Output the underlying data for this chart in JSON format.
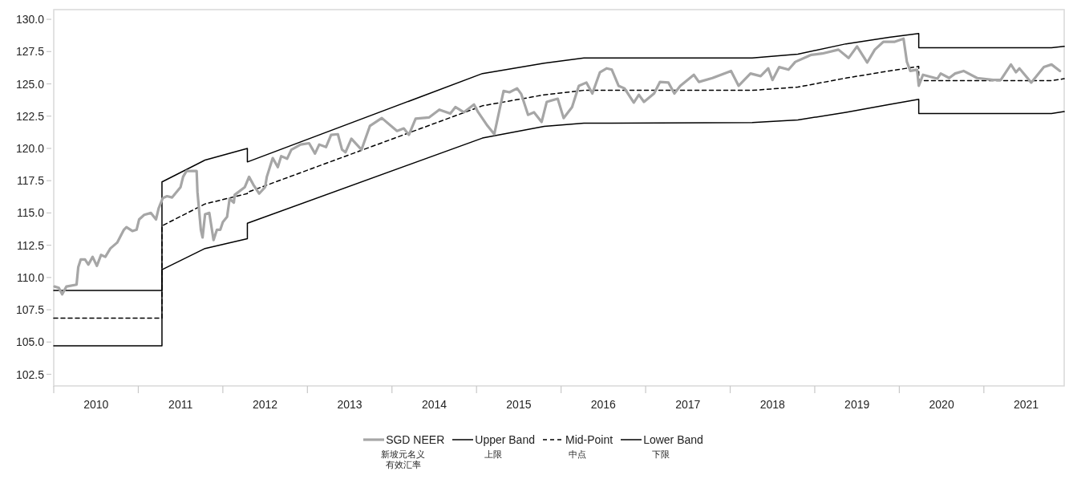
{
  "chart_data": {
    "type": "line",
    "xlim": [
      2010,
      2021.95
    ],
    "ylim": [
      101.6,
      130.75
    ],
    "xticks": [
      {
        "value": 2010,
        "label": null
      },
      {
        "value": 2010.5,
        "label": "2010"
      },
      {
        "value": 2011,
        "label": null
      },
      {
        "value": 2011.5,
        "label": "2011"
      },
      {
        "value": 2012,
        "label": null
      },
      {
        "value": 2012.5,
        "label": "2012"
      },
      {
        "value": 2013,
        "label": null
      },
      {
        "value": 2013.5,
        "label": "2013"
      },
      {
        "value": 2014,
        "label": null
      },
      {
        "value": 2014.5,
        "label": "2014"
      },
      {
        "value": 2015,
        "label": null
      },
      {
        "value": 2015.5,
        "label": "2015"
      },
      {
        "value": 2016,
        "label": null
      },
      {
        "value": 2016.5,
        "label": "2016"
      },
      {
        "value": 2017,
        "label": null
      },
      {
        "value": 2017.5,
        "label": "2017"
      },
      {
        "value": 2018,
        "label": null
      },
      {
        "value": 2018.5,
        "label": "2018"
      },
      {
        "value": 2019,
        "label": null
      },
      {
        "value": 2019.5,
        "label": "2019"
      },
      {
        "value": 2020,
        "label": null
      },
      {
        "value": 2020.5,
        "label": "2020"
      },
      {
        "value": 2021,
        "label": null
      },
      {
        "value": 2021.5,
        "label": "2021"
      }
    ],
    "yticks": [
      {
        "value": 102.5,
        "label": "102.5"
      },
      {
        "value": 105,
        "label": "105.0"
      },
      {
        "value": 107.5,
        "label": "107.5"
      },
      {
        "value": 110,
        "label": "110.0"
      },
      {
        "value": 112.5,
        "label": "112.5"
      },
      {
        "value": 115,
        "label": "115.0"
      },
      {
        "value": 117.5,
        "label": "117.5"
      },
      {
        "value": 120,
        "label": "120.0"
      },
      {
        "value": 122.5,
        "label": "122.5"
      },
      {
        "value": 125,
        "label": "125.0"
      },
      {
        "value": 127.5,
        "label": "127.5"
      },
      {
        "value": 130,
        "label": "130.0"
      }
    ],
    "grid": false,
    "legend": "bottom",
    "series": [
      {
        "name": "SGD NEER",
        "color": "#a6a6a6",
        "line_style": "solid",
        "x": [
          2010.01,
          2010.06,
          2010.1,
          2010.15,
          2010.27,
          2010.29,
          2010.32,
          2010.37,
          2010.41,
          2010.46,
          2010.51,
          2010.56,
          2010.61,
          2010.67,
          2010.75,
          2010.83,
          2010.86,
          2010.93,
          2010.98,
          2011.01,
          2011.07,
          2011.15,
          2011.21,
          2011.24,
          2011.29,
          2011.34,
          2011.4,
          2011.5,
          2011.53,
          2011.57,
          2011.69,
          2011.7,
          2011.74,
          2011.76,
          2011.79,
          2011.84,
          2011.89,
          2011.93,
          2011.97,
          2012.0,
          2012.05,
          2012.08,
          2012.13,
          2012.14,
          2012.26,
          2012.31,
          2012.36,
          2012.43,
          2012.5,
          2012.52,
          2012.59,
          2012.65,
          2012.69,
          2012.76,
          2012.81,
          2012.92,
          2013.02,
          2013.09,
          2013.14,
          2013.22,
          2013.28,
          2013.36,
          2013.41,
          2013.45,
          2013.52,
          2013.64,
          2013.74,
          2013.88,
          2014.06,
          2014.14,
          2014.2,
          2014.28,
          2014.44,
          2014.56,
          2014.69,
          2014.75,
          2014.85,
          2014.97,
          2015.02,
          2015.13,
          2015.21,
          2015.32,
          2015.39,
          2015.48,
          2015.53,
          2015.61,
          2015.68,
          2015.77,
          2015.83,
          2015.96,
          2016.03,
          2016.13,
          2016.21,
          2016.3,
          2016.37,
          2016.46,
          2016.54,
          2016.6,
          2016.68,
          2016.75,
          2016.86,
          2016.92,
          2016.98,
          2017.1,
          2017.17,
          2017.27,
          2017.34,
          2017.41,
          2017.57,
          2017.63,
          2017.79,
          2018.01,
          2018.1,
          2018.24,
          2018.36,
          2018.45,
          2018.5,
          2018.58,
          2018.69,
          2018.77,
          2018.96,
          2019.09,
          2019.28,
          2019.4,
          2019.5,
          2019.62,
          2019.71,
          2019.81,
          2019.94,
          2020.05,
          2020.09,
          2020.13,
          2020.21,
          2020.23,
          2020.28,
          2020.45,
          2020.49,
          2020.59,
          2020.66,
          2020.76,
          2020.92,
          2021.11,
          2021.2,
          2021.32,
          2021.38,
          2021.42,
          2021.56,
          2021.71,
          2021.8,
          2021.9
        ],
        "values": [
          109.3,
          109.2,
          108.7,
          109.3,
          109.45,
          110.8,
          111.4,
          111.4,
          111.0,
          111.6,
          110.9,
          111.75,
          111.6,
          112.25,
          112.7,
          113.7,
          113.9,
          113.6,
          113.7,
          114.5,
          114.85,
          115.0,
          114.5,
          115.35,
          116.15,
          116.3,
          116.2,
          117.0,
          117.8,
          118.25,
          118.25,
          116.6,
          113.7,
          113.1,
          114.9,
          115.0,
          112.9,
          113.7,
          113.7,
          114.3,
          114.7,
          116.1,
          115.8,
          116.4,
          117.0,
          117.8,
          117.2,
          116.5,
          117.0,
          117.8,
          119.25,
          118.55,
          119.4,
          119.2,
          119.9,
          120.3,
          120.4,
          119.6,
          120.3,
          120.1,
          121.05,
          121.1,
          119.9,
          119.7,
          120.75,
          119.9,
          121.75,
          122.35,
          121.35,
          121.55,
          121.05,
          122.3,
          122.4,
          123.0,
          122.7,
          123.2,
          122.8,
          123.4,
          122.8,
          121.75,
          121.1,
          124.45,
          124.35,
          124.65,
          124.2,
          122.6,
          122.8,
          122.05,
          123.6,
          123.85,
          122.35,
          123.2,
          124.85,
          125.1,
          124.25,
          125.9,
          126.2,
          126.1,
          124.85,
          124.65,
          123.55,
          124.15,
          123.6,
          124.25,
          125.15,
          125.1,
          124.25,
          124.85,
          125.7,
          125.15,
          125.45,
          126.0,
          124.85,
          125.8,
          125.6,
          126.2,
          125.3,
          126.3,
          126.1,
          126.7,
          127.25,
          127.35,
          127.65,
          127.0,
          127.9,
          126.65,
          127.65,
          128.25,
          128.25,
          128.5,
          126.7,
          126.0,
          126.1,
          124.85,
          125.7,
          125.4,
          125.8,
          125.45,
          125.8,
          126.0,
          125.45,
          125.3,
          125.3,
          126.5,
          125.9,
          126.2,
          125.1,
          126.3,
          126.5,
          126.0
        ]
      },
      {
        "name": "Upper Band",
        "color": "#000000",
        "line_style": "solid",
        "x": [
          2010.0,
          2011.28,
          2011.28,
          2011.79,
          2012.29,
          2012.29,
          2015.07,
          2015.8,
          2016.27,
          2018.26,
          2018.8,
          2019.37,
          2019.88,
          2020.23,
          2020.23,
          2021.8,
          2021.95
        ],
        "values": [
          109.0,
          109.0,
          117.4,
          119.1,
          120.0,
          118.95,
          125.8,
          126.6,
          127.0,
          127.0,
          127.3,
          128.1,
          128.6,
          128.9,
          127.8,
          127.8,
          127.9
        ]
      },
      {
        "name": "Mid-Point",
        "color": "#000000",
        "line_style": "dashed",
        "x": [
          2010.0,
          2011.28,
          2011.28,
          2011.79,
          2012.29,
          2012.29,
          2015.07,
          2015.8,
          2016.27,
          2018.26,
          2018.8,
          2019.37,
          2019.88,
          2020.23,
          2020.23,
          2021.8,
          2021.95
        ],
        "values": [
          106.85,
          106.85,
          114.0,
          115.7,
          116.5,
          116.6,
          123.3,
          124.15,
          124.5,
          124.5,
          124.75,
          125.45,
          126.0,
          126.35,
          125.25,
          125.25,
          125.4
        ]
      },
      {
        "name": "Lower Band",
        "color": "#000000",
        "line_style": "solid",
        "x": [
          2010.0,
          2011.28,
          2011.28,
          2011.79,
          2012.29,
          2012.29,
          2015.07,
          2015.8,
          2016.27,
          2018.26,
          2018.8,
          2019.37,
          2019.88,
          2020.23,
          2020.23,
          2021.8,
          2021.95
        ],
        "values": [
          104.7,
          104.7,
          110.6,
          112.25,
          113.0,
          114.2,
          120.8,
          121.7,
          121.95,
          122.0,
          122.2,
          122.8,
          123.4,
          123.8,
          122.7,
          122.7,
          122.85
        ]
      }
    ],
    "annotations": [
      "新坡元名义有效汇率",
      "上限",
      "中点",
      "下限"
    ]
  }
}
